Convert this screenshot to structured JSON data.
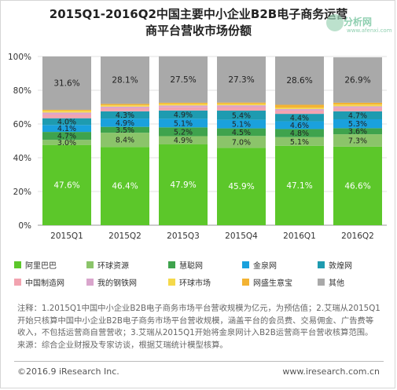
{
  "title_line1": "2015Q1-2016Q2中国主要中小企业B2B电子商务运营",
  "title_line2": "商平台营收市场份额",
  "watermark": {
    "text": "分析网",
    "url": "www.afenxi.com"
  },
  "chart_data": {
    "type": "bar",
    "stacked": true,
    "percent": true,
    "categories": [
      "2015Q1",
      "2015Q2",
      "2015Q3",
      "2015Q4",
      "2016Q1",
      "2016Q2"
    ],
    "y_ticks": [
      "0%",
      "20%",
      "40%",
      "60%",
      "80%",
      "100%"
    ],
    "ylim": [
      0,
      100
    ],
    "grid": true,
    "legend_position": "bottom",
    "series": [
      {
        "name": "阿里巴巴",
        "color": "#5cc72a",
        "values": [
          47.6,
          46.4,
          47.9,
          45.9,
          47.1,
          46.6
        ],
        "labels": [
          "47.6%",
          "46.4%",
          "47.9%",
          "45.9%",
          "47.1%",
          "46.6%"
        ]
      },
      {
        "name": "环球资源",
        "color": "#8bc46a",
        "values": [
          3.0,
          8.4,
          4.9,
          7.0,
          5.1,
          7.3
        ],
        "labels": [
          "3.0%",
          "8.4%",
          "4.9%",
          "7.0%",
          "5.1%",
          "7.3%"
        ]
      },
      {
        "name": "慧聪网",
        "color": "#3fa34d",
        "values": [
          4.7,
          3.5,
          5.2,
          4.5,
          4.8,
          3.6
        ],
        "labels": [
          "4.7%",
          "3.5%",
          "5.2%",
          "4.5%",
          "4.8%",
          "3.6%"
        ]
      },
      {
        "name": "金泉网",
        "color": "#1aa1dd",
        "values": [
          4.1,
          4.9,
          5.1,
          5.1,
          4.6,
          5.3
        ],
        "labels": [
          "4.1%",
          "4.9%",
          "5.1%",
          "5.1%",
          "4.6%",
          "5.3%"
        ]
      },
      {
        "name": "敦煌网",
        "color": "#1e9bb0",
        "values": [
          4.0,
          4.3,
          4.9,
          5.4,
          4.4,
          4.7
        ],
        "labels": [
          "4.0%",
          "4.3%",
          "4.9%",
          "5.4%",
          "4.4%",
          "4.7%"
        ]
      },
      {
        "name": "中国制造网",
        "color": "#f2a3b0",
        "values": [
          2.2,
          1.8,
          1.9,
          2.1,
          1.9,
          2.0
        ],
        "labels": [
          "",
          "",
          "",
          "",
          "",
          ""
        ]
      },
      {
        "name": "我的钢铁网",
        "color": "#d9a5cc",
        "values": [
          1.2,
          1.0,
          1.1,
          1.1,
          1.0,
          1.0
        ],
        "labels": [
          "",
          "",
          "",
          "",
          "",
          ""
        ]
      },
      {
        "name": "环球市场",
        "color": "#f5d94a",
        "values": [
          1.0,
          0.8,
          0.9,
          0.8,
          0.7,
          1.0
        ],
        "labels": [
          "",
          "",
          "",
          "",
          "",
          ""
        ]
      },
      {
        "name": "网盛生意宝",
        "color": "#f3b333",
        "values": [
          0.6,
          0.8,
          0.7,
          0.8,
          1.8,
          1.1
        ],
        "labels": [
          "",
          "",
          "",
          "",
          "",
          ""
        ]
      },
      {
        "name": "其他",
        "color": "#a9a9a9",
        "values": [
          31.6,
          28.1,
          27.5,
          27.3,
          28.6,
          26.9
        ],
        "labels": [
          "31.6%",
          "28.1%",
          "27.5%",
          "27.3%",
          "28.6%",
          "26.9%"
        ]
      }
    ]
  },
  "notes": {
    "line1": "注释：1.2015Q1中国中小企业B2B电子商务市场平台营收规模为亿元，为预估值；2.艾瑞从2015Q1",
    "line2": "开始只核算中国中小企业B2B电子商务市场平台营收规模，涵盖平台的会员费、交易佣金、广告费等",
    "line3": "收入，不包括运营商自营营收；3.艾瑞从2015Q1开始将金泉网计入B2B运营商平台营收核算范围。",
    "line4": "来源：综合企业财报及专家访谈，根据艾瑞统计模型核算。"
  },
  "footer": {
    "left": "©2016.9 iResearch Inc.",
    "right": "www.iresearch.com.cn"
  }
}
